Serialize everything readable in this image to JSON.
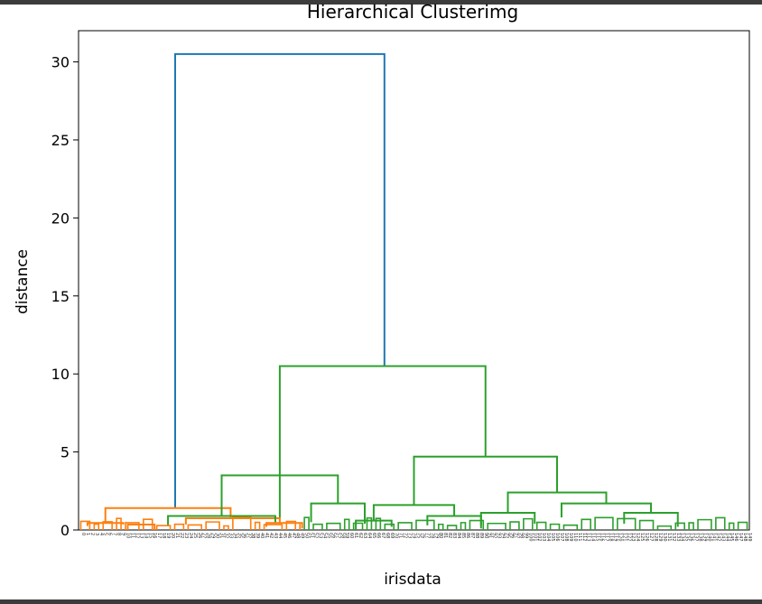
{
  "chart_data": {
    "type": "dendrogram",
    "title": "Hierarchical Clusterimg",
    "xlabel": "irisdata",
    "ylabel": "distance",
    "ylim": [
      0,
      32
    ],
    "yticks": [
      0,
      5,
      10,
      15,
      20,
      25,
      30
    ],
    "grid": false,
    "legend": "none",
    "colors": {
      "cluster_1": "#ff7f0e",
      "cluster_2": "#2ca02c",
      "root": "#1f77b4"
    },
    "n_leaves": 150,
    "clusters": [
      {
        "leaves": 50,
        "height": 1.4,
        "color": "#ff7f0e"
      },
      {
        "leaves": 100,
        "height": 10.5,
        "color": "#2ca02c"
      }
    ],
    "root_height": 30.5,
    "links": [
      {
        "xa": 1.08,
        "ya": 1.4,
        "xb": 3.42,
        "yb": 10.5,
        "h": 30.5,
        "color": "#1f77b4"
      },
      {
        "xa": 0.3,
        "ya": 0.45,
        "xb": 1.7,
        "yb": 0.75,
        "h": 1.4,
        "color": "#ff7f0e"
      },
      {
        "xa": 0.1,
        "ya": 0.25,
        "xb": 0.5,
        "yb": 0.35,
        "h": 0.45,
        "color": "#ff7f0e"
      },
      {
        "xa": 1.2,
        "ya": 0.35,
        "xb": 2.25,
        "yb": 0.45,
        "h": 0.75,
        "color": "#ff7f0e"
      },
      {
        "xa": 2.1,
        "ya": 0.2,
        "xb": 2.5,
        "yb": 0.1,
        "h": 0.45,
        "color": "#ff7f0e"
      },
      {
        "xa": 0.55,
        "ya": 0.0,
        "xb": 0.85,
        "yb": 0.0,
        "h": 0.35,
        "color": "#ff7f0e"
      },
      {
        "xa": 2.25,
        "ya": 0.8,
        "xb": 4.55,
        "yb": 4.7,
        "h": 10.5,
        "color": "#2ca02c"
      },
      {
        "xa": 1.6,
        "ya": 0.9,
        "xb": 2.9,
        "yb": 1.7,
        "h": 3.5,
        "color": "#2ca02c"
      },
      {
        "xa": 1.0,
        "ya": 0.3,
        "xb": 2.2,
        "yb": 0.5,
        "h": 0.9,
        "color": "#2ca02c"
      },
      {
        "xa": 2.6,
        "ya": 0.5,
        "xb": 3.2,
        "yb": 0.4,
        "h": 1.7,
        "color": "#2ca02c"
      },
      {
        "xa": 3.75,
        "ya": 1.6,
        "xb": 5.35,
        "yb": 2.4,
        "h": 4.7,
        "color": "#2ca02c"
      },
      {
        "xa": 3.3,
        "ya": 0.6,
        "xb": 4.2,
        "yb": 0.9,
        "h": 1.6,
        "color": "#2ca02c"
      },
      {
        "xa": 4.8,
        "ya": 1.1,
        "xb": 5.9,
        "yb": 1.7,
        "h": 2.4,
        "color": "#2ca02c"
      },
      {
        "xa": 5.4,
        "ya": 0.8,
        "xb": 6.4,
        "yb": 1.1,
        "h": 1.7,
        "color": "#2ca02c"
      },
      {
        "xa": 6.1,
        "ya": 0.4,
        "xb": 6.7,
        "yb": 0.2,
        "h": 1.1,
        "color": "#2ca02c"
      },
      {
        "xa": 4.5,
        "ya": 0.3,
        "xb": 5.1,
        "yb": 0.4,
        "h": 1.1,
        "color": "#2ca02c"
      },
      {
        "xa": 3.1,
        "ya": 0.0,
        "xb": 3.5,
        "yb": 0.2,
        "h": 0.6,
        "color": "#2ca02c"
      },
      {
        "xa": 3.9,
        "ya": 0.3,
        "xb": 4.5,
        "yb": 0.1,
        "h": 0.9,
        "color": "#2ca02c"
      }
    ]
  }
}
